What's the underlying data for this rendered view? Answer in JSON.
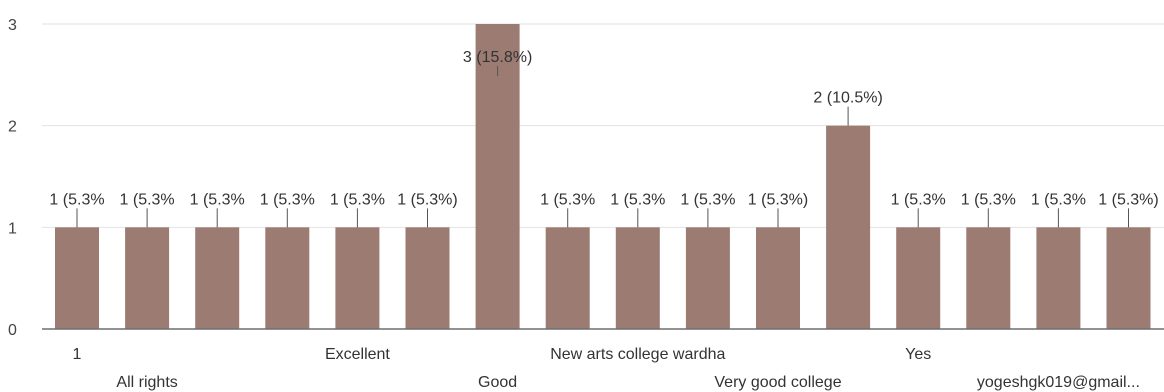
{
  "chart_data": {
    "type": "bar",
    "categories": [
      "1",
      "All rights",
      "",
      "",
      "Excellent",
      "",
      "Good",
      "",
      "New arts college wardha",
      "",
      "Very good college",
      "",
      "Yes",
      "",
      "yogeshgk019@gmail...",
      ""
    ],
    "values": [
      1,
      1,
      1,
      1,
      1,
      1,
      3,
      1,
      1,
      1,
      1,
      2,
      1,
      1,
      1,
      1
    ],
    "data_labels": [
      "1 (5.3%",
      "1 (5.3%",
      "1 (5.3%",
      "1 (5.3%",
      "1 (5.3%",
      "1 (5.3%)",
      "3 (15.8%)",
      "1 (5.3%",
      "1 (5.3%",
      "1 (5.3%",
      "1 (5.3%)",
      "2 (10.5%)",
      "1 (5.3%",
      "1 (5.3%",
      "1 (5.3%",
      "1 (5.3%)"
    ],
    "y_ticks": [
      "0",
      "1",
      "2",
      "3"
    ],
    "ylim": [
      0,
      3
    ],
    "grid": true,
    "colors": {
      "bar": "#9b7b72",
      "grid": "#e2e2e2",
      "baseline": "#6f6f6f",
      "whisker": "#555555"
    }
  }
}
